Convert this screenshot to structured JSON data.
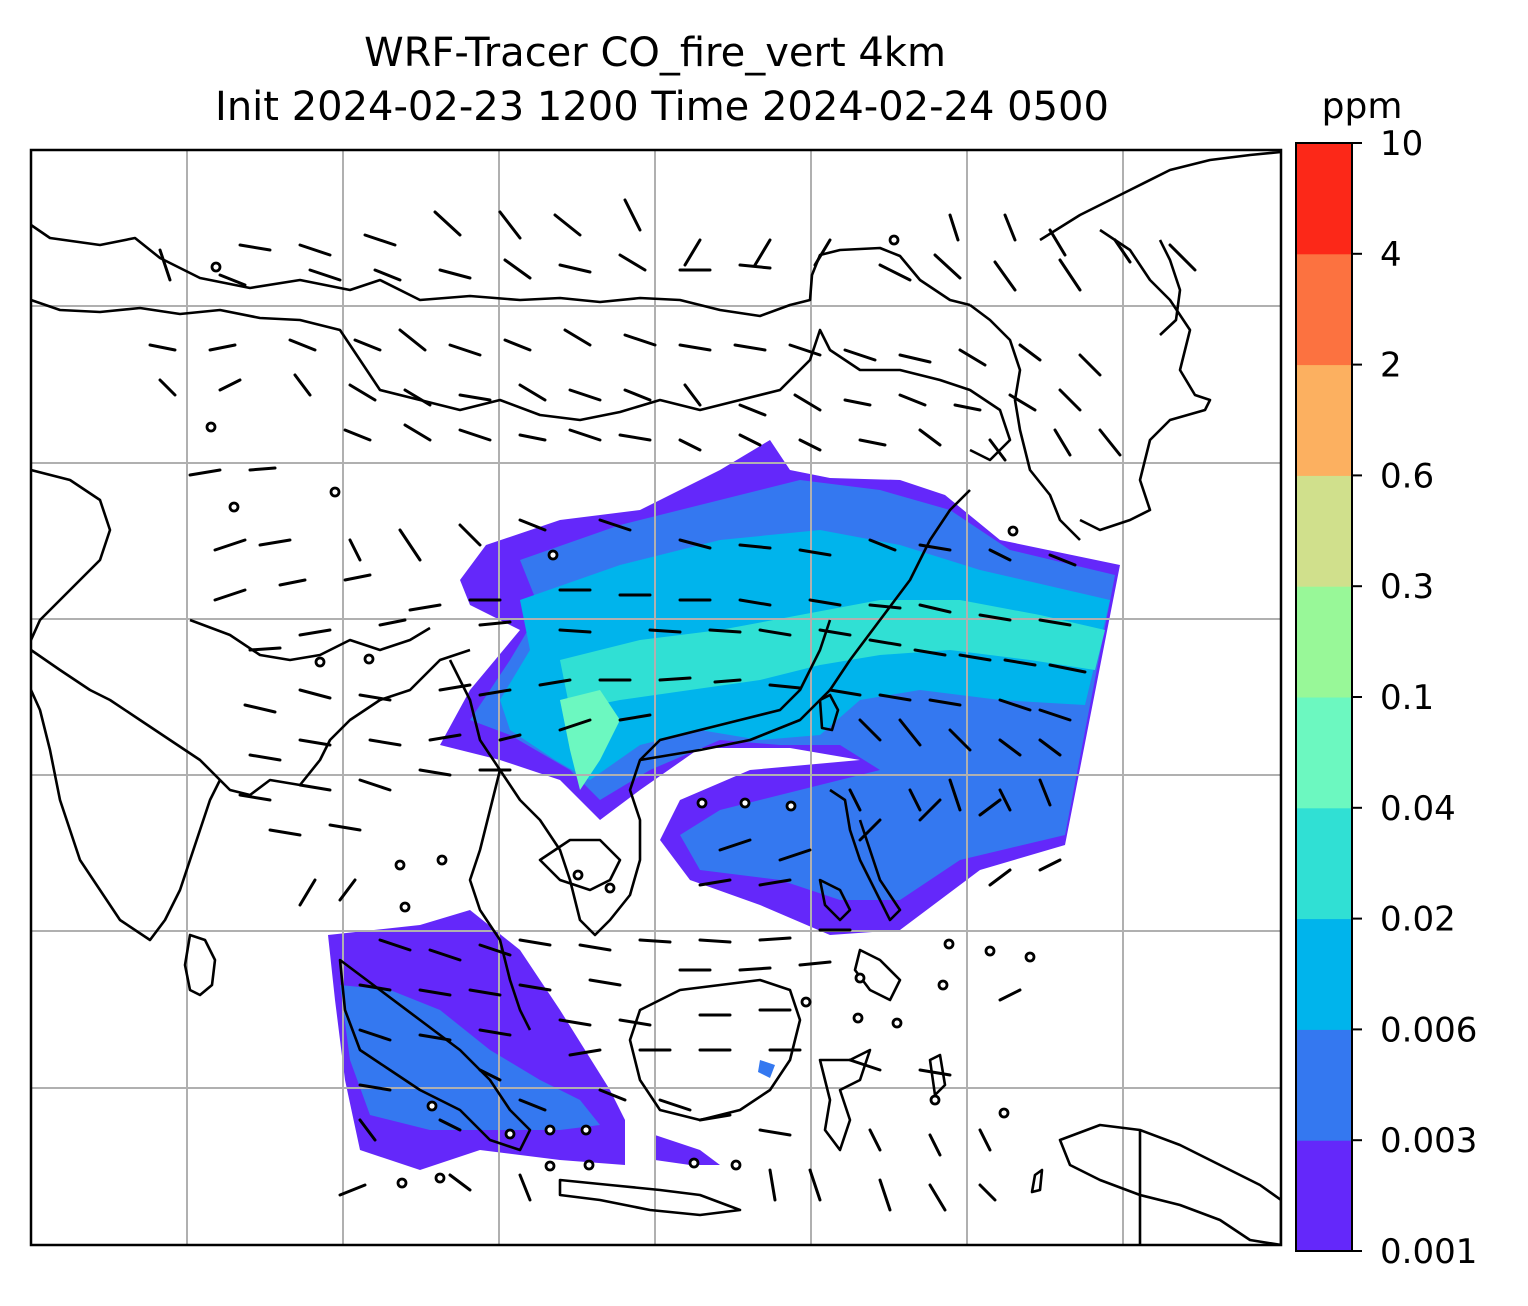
{
  "title_line1": "WRF-Tracer CO_fire_vert 4km",
  "title_line2": "Init 2024-02-23 1200 Time 2024-02-24 0500",
  "colorbar": {
    "unit": "ppm",
    "ticks": [
      "0.001",
      "0.003",
      "0.006",
      "0.02",
      "0.04",
      "0.1",
      "0.3",
      "0.6",
      "2",
      "4",
      "10"
    ],
    "colors": [
      "#6428fa",
      "#3478f0",
      "#00b4ec",
      "#30e0d4",
      "#6cf8c0",
      "#98f898",
      "#d0e08c",
      "#fcb060",
      "#fc7240",
      "#fc2818"
    ]
  },
  "map": {
    "background": "#ffffff",
    "grid_color": "#b0b0b0",
    "coastline_color": "#000000",
    "field": "CO_fire_vert tracer concentration",
    "overlay": "wind barbs"
  }
}
